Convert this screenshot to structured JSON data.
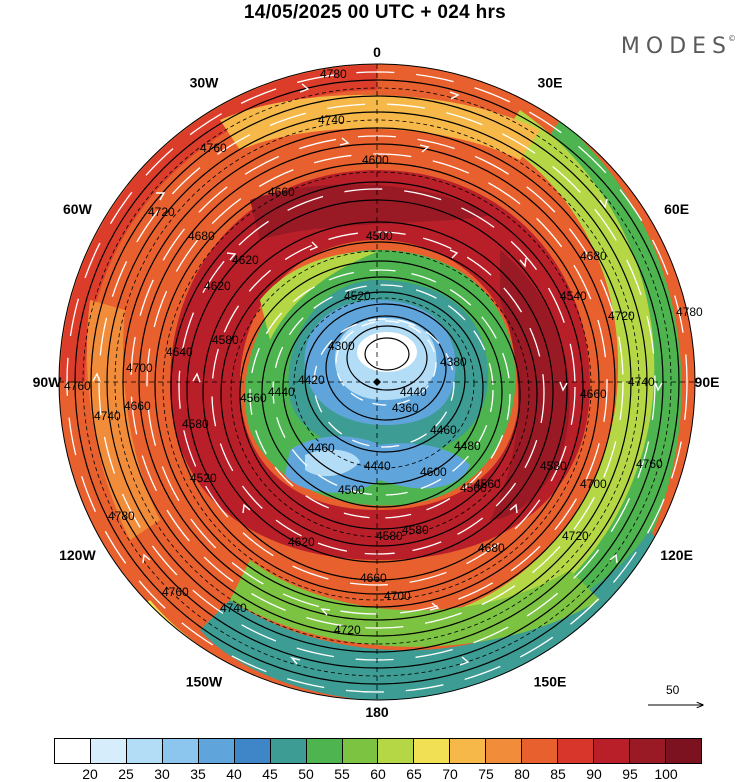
{
  "header": {
    "title": "14/05/2025  00 UTC  + 024 hrs",
    "brand": "MODES"
  },
  "longitude_labels": [
    {
      "id": "0",
      "text": "0",
      "lon": 0
    },
    {
      "id": "30e",
      "text": "30E",
      "lon": 30
    },
    {
      "id": "60e",
      "text": "60E",
      "lon": 60
    },
    {
      "id": "90e",
      "text": "90E",
      "lon": 90
    },
    {
      "id": "120e",
      "text": "120E",
      "lon": 120
    },
    {
      "id": "150e",
      "text": "150E",
      "lon": 150
    },
    {
      "id": "180",
      "text": "180",
      "lon": 180
    },
    {
      "id": "150w",
      "text": "150W",
      "lon": 210
    },
    {
      "id": "120w",
      "text": "120W",
      "lon": 240
    },
    {
      "id": "90w",
      "text": "90W",
      "lon": 270
    },
    {
      "id": "60w",
      "text": "60W",
      "lon": 300
    },
    {
      "id": "30w",
      "text": "30W",
      "lon": 330
    }
  ],
  "height_contours": {
    "interval": 20,
    "labels": [
      "4780",
      "4740",
      "4760",
      "4720",
      "4680",
      "4660",
      "4600",
      "4540",
      "4620",
      "4500",
      "4620",
      "4580",
      "4640",
      "4700",
      "4740",
      "4760",
      "4660",
      "4580",
      "4520",
      "4460",
      "4500",
      "4560",
      "4440",
      "4460",
      "4360",
      "4300",
      "4420",
      "4440",
      "4560",
      "4580",
      "4620",
      "4660",
      "4680",
      "4700",
      "4720",
      "4740",
      "4760",
      "4780",
      "4720",
      "4700",
      "4660",
      "4760",
      "4720",
      "4740",
      "4780",
      "4680",
      "4580",
      "4520",
      "4380",
      "4440",
      "4480",
      "4560",
      "4580",
      "4600"
    ]
  },
  "reference_vector": {
    "value": "50"
  },
  "colorbar": {
    "colors": [
      "#ffffff",
      "#d6eefc",
      "#b3ddf7",
      "#8cc6ee",
      "#5fa5db",
      "#3f86c8",
      "#3d9c93",
      "#4db44f",
      "#7cc341",
      "#b5d746",
      "#f1e053",
      "#f6b949",
      "#f18d3a",
      "#e8602e",
      "#d8352b",
      "#b81f28",
      "#991a24",
      "#7c1120"
    ],
    "tick_labels": [
      "20",
      "25",
      "30",
      "35",
      "40",
      "45",
      "50",
      "55",
      "60",
      "65",
      "70",
      "75",
      "80",
      "85",
      "90",
      "95",
      "100"
    ]
  }
}
